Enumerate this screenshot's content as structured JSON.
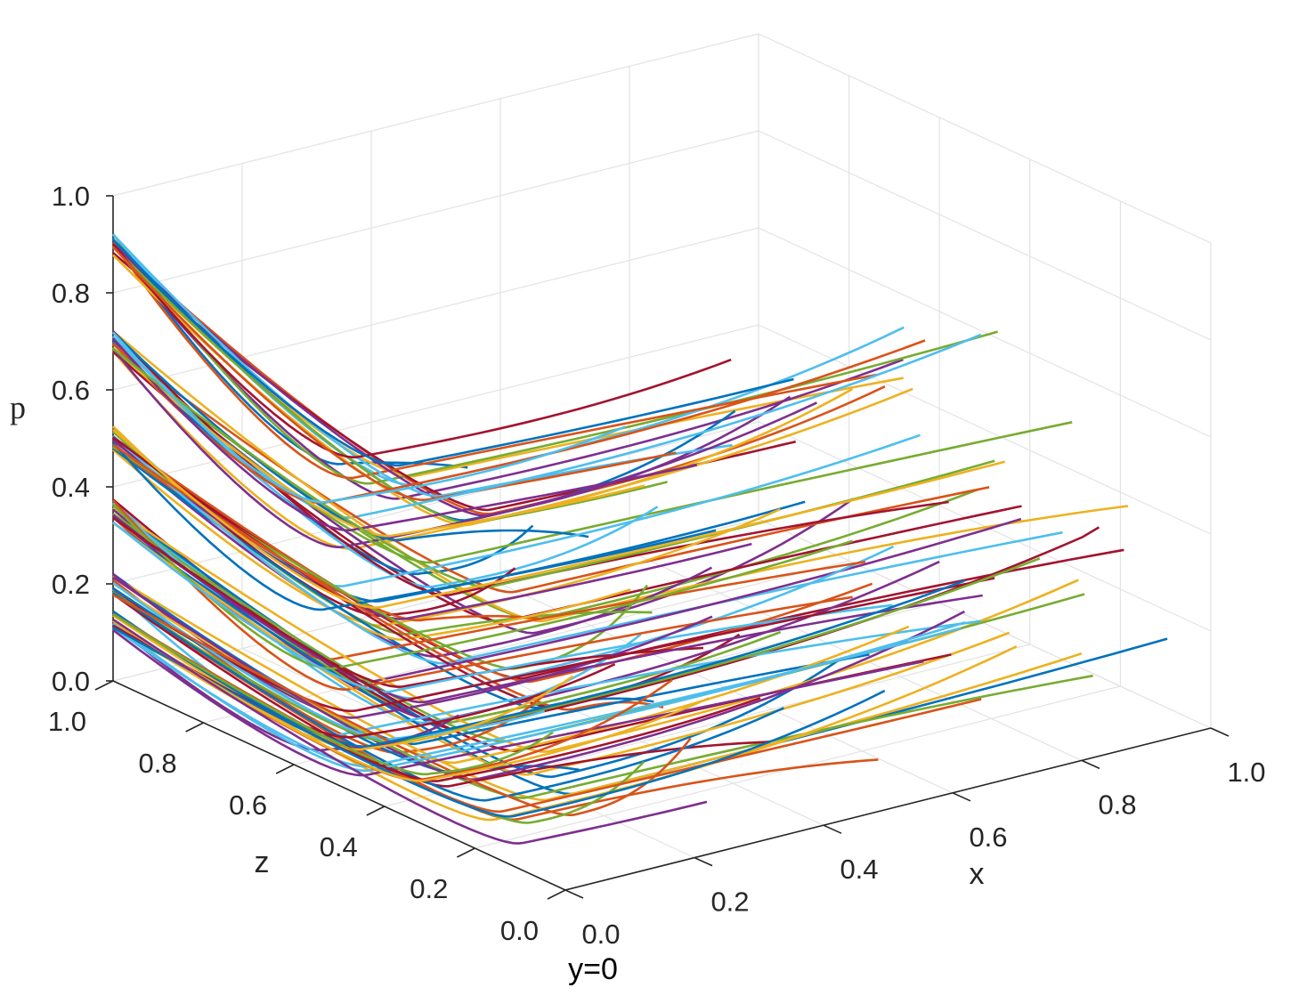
{
  "chart_data": {
    "type": "line",
    "projection": "3d",
    "annotation": "y=0",
    "axes": {
      "x": {
        "label": "x",
        "range": [
          0,
          1
        ],
        "ticks": [
          "0.0",
          "0.2",
          "0.4",
          "0.6",
          "0.8",
          "1.0"
        ]
      },
      "z": {
        "label": "z",
        "range": [
          0,
          1
        ],
        "ticks": [
          "0.0",
          "0.2",
          "0.4",
          "0.6",
          "0.8",
          "1.0"
        ]
      },
      "p": {
        "label": "p",
        "range": [
          0,
          1
        ],
        "ticks": [
          "0.0",
          "0.2",
          "0.4",
          "0.6",
          "0.8",
          "1.0"
        ]
      }
    },
    "grid": true,
    "legend": "none",
    "convergence_point": {
      "x": 0,
      "z": 1,
      "p": "varies"
    },
    "trajectory_families": [
      {
        "p_start": 0.9,
        "p_end": 0.6,
        "count": 16
      },
      {
        "p_start": 0.7,
        "p_end": 0.45,
        "count": 18
      },
      {
        "p_start": 0.5,
        "p_end": 0.3,
        "count": 18
      },
      {
        "p_start": 0.35,
        "p_end": 0.15,
        "count": 18
      },
      {
        "p_start": 0.2,
        "p_end": 0.05,
        "count": 16
      },
      {
        "p_start": 0.12,
        "p_end": 0.0,
        "count": 16
      }
    ],
    "series_colors": [
      "#0072BD",
      "#D95319",
      "#EDB120",
      "#7E2F8E",
      "#77AC30",
      "#4DBEEE",
      "#A2142F"
    ]
  }
}
